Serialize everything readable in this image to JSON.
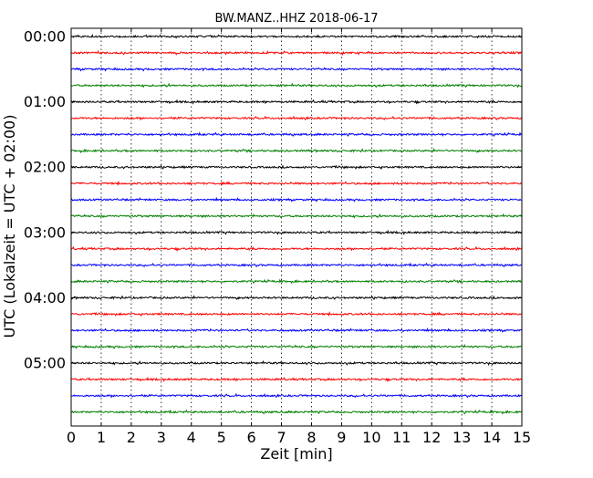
{
  "chart_data": {
    "type": "line",
    "title": "BW.MANZ..HHZ 2018-06-17",
    "xlabel": "Zeit  [min]",
    "ylabel": "UTC (Lokalzeit = UTC + 02:00)",
    "xlim": [
      0,
      15
    ],
    "x_ticks": [
      0,
      1,
      2,
      3,
      4,
      5,
      6,
      7,
      8,
      9,
      10,
      11,
      12,
      13,
      14,
      15
    ],
    "y_tick_labels": [
      "00:00",
      "01:00",
      "02:00",
      "03:00",
      "04:00",
      "05:00"
    ],
    "grid": "vertical dotted",
    "trace_interval_minutes": 15,
    "trace_count": 24,
    "trace_colors": [
      "#000000",
      "#ff0000",
      "#0000ff",
      "#008000"
    ]
  }
}
